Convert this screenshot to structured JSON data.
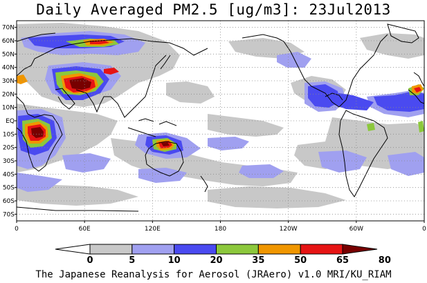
{
  "title": "Daily Averaged PM2.5 [ug/m3]: 23Jul2013",
  "footer": "The Japanese Reanalysis for Aerosol (JRAero) v1.0 MRI/KU_RIAM",
  "map": {
    "projection": "equirectangular",
    "lon_range": [
      0,
      360
    ],
    "lat_range": [
      -75,
      75
    ],
    "lat_labels": [
      "70N",
      "60N",
      "50N",
      "40N",
      "30N",
      "20N",
      "10N",
      "EQ",
      "10S",
      "20S",
      "30S",
      "40S",
      "50S",
      "60S",
      "70S"
    ],
    "lat_values": [
      70,
      60,
      50,
      40,
      30,
      20,
      10,
      0,
      -10,
      -20,
      -30,
      -40,
      -50,
      -60,
      -70
    ],
    "lon_labels": [
      "0",
      "60E",
      "120E",
      "180",
      "120W",
      "60W",
      "0"
    ],
    "lon_values": [
      0,
      60,
      120,
      180,
      240,
      300,
      360
    ],
    "gridlines": true
  },
  "legend": {
    "colorbar_labels": [
      "0",
      "5",
      "10",
      "20",
      "35",
      "50",
      "65",
      "80"
    ],
    "colors": [
      "#ffffff",
      "#c8c8c8",
      "#a0a0f0",
      "#4a4af0",
      "#8cc83c",
      "#f09600",
      "#e61414",
      "#780000"
    ]
  },
  "layers": {
    "pm25_fill_colors": {
      "light_gray": "#c8c8c8",
      "light_blue": "#a0a0f0",
      "blue": "#4a4af0",
      "green": "#8cc83c",
      "orange": "#f09600",
      "red": "#e61414",
      "dark_red": "#780000"
    },
    "coastline_color": "#000000"
  }
}
